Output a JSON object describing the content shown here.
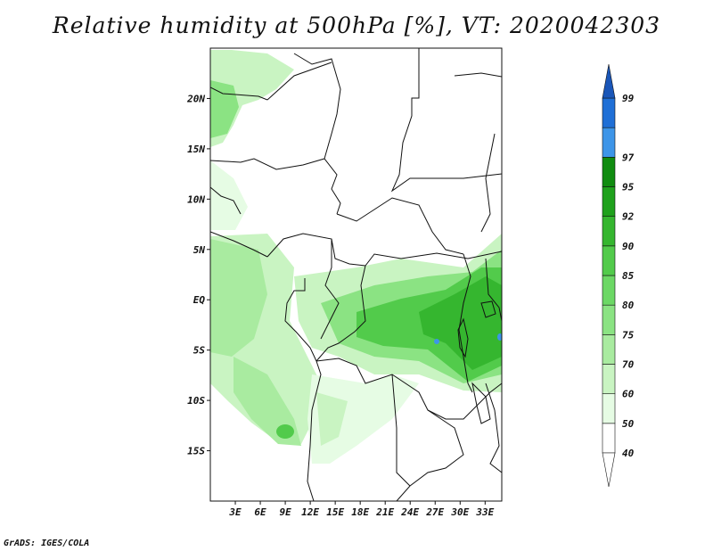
{
  "title": "Relative humidity at 500hPa [%], VT: 2020042303",
  "credit": "GrADS: IGES/COLA",
  "map": {
    "lon_range": [
      0,
      35
    ],
    "lat_range": [
      -20,
      25
    ],
    "lat_ticks": [
      {
        "value": 20,
        "label": "20N"
      },
      {
        "value": 15,
        "label": "15N"
      },
      {
        "value": 10,
        "label": "10N"
      },
      {
        "value": 5,
        "label": "5N"
      },
      {
        "value": 0,
        "label": "EQ"
      },
      {
        "value": -5,
        "label": "5S"
      },
      {
        "value": -10,
        "label": "10S"
      },
      {
        "value": -15,
        "label": "15S"
      }
    ],
    "lon_ticks": [
      {
        "value": 3,
        "label": "3E"
      },
      {
        "value": 6,
        "label": "6E"
      },
      {
        "value": 9,
        "label": "9E"
      },
      {
        "value": 12,
        "label": "12E"
      },
      {
        "value": 15,
        "label": "15E"
      },
      {
        "value": 18,
        "label": "18E"
      },
      {
        "value": 21,
        "label": "21E"
      },
      {
        "value": 24,
        "label": "24E"
      },
      {
        "value": 27,
        "label": "27E"
      },
      {
        "value": 30,
        "label": "30E"
      },
      {
        "value": 33,
        "label": "33E"
      }
    ]
  },
  "colorbar": {
    "levels": [
      {
        "label": "40",
        "color": "#ffffff"
      },
      {
        "label": "50",
        "color": "#e6fce4"
      },
      {
        "label": "60",
        "color": "#c9f4c2"
      },
      {
        "label": "70",
        "color": "#a9eba0"
      },
      {
        "label": "75",
        "color": "#8be383"
      },
      {
        "label": "80",
        "color": "#6cd865"
      },
      {
        "label": "85",
        "color": "#52cb4b"
      },
      {
        "label": "90",
        "color": "#35b62f"
      },
      {
        "label": "92",
        "color": "#1fa11c"
      },
      {
        "label": "95",
        "color": "#108c10"
      },
      {
        "label": "97",
        "color": "#3d95e8"
      },
      {
        "label": "99",
        "color": "#1f6fd6"
      }
    ],
    "top_arrow_color": "#1a56b8",
    "bottom_arrow_color": "#ffffff"
  }
}
